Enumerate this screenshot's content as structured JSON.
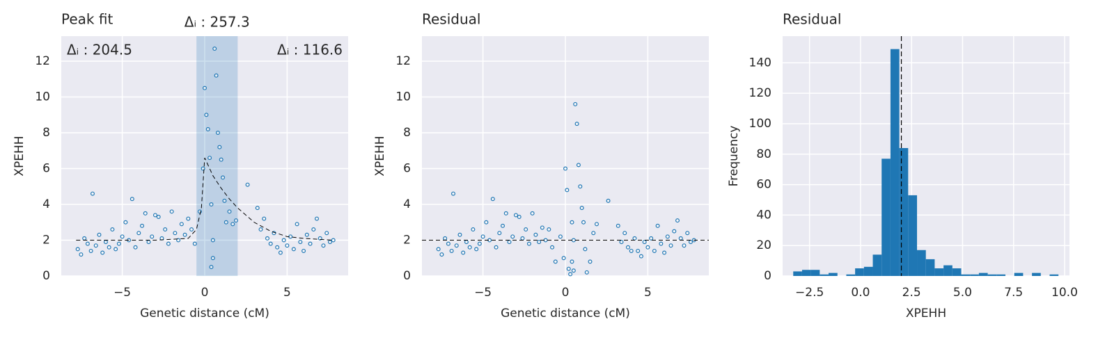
{
  "chart_data": [
    {
      "type": "scatter",
      "title": "Peak fit",
      "xlabel": "Genetic distance (cM)",
      "ylabel": "XPEHH",
      "xlim": [
        -8.7,
        8.7
      ],
      "ylim": [
        0,
        13.4
      ],
      "xticks": [
        {
          "value": -5,
          "label": "−5"
        },
        0,
        5
      ],
      "yticks": [
        0,
        2,
        4,
        6,
        8,
        10,
        12
      ],
      "color": "#1f77b4",
      "points": {
        "x": [
          -7.7,
          -7.5,
          -7.3,
          -7.1,
          -6.9,
          -6.8,
          -6.6,
          -6.4,
          -6.2,
          -6.0,
          -5.8,
          -5.6,
          -5.4,
          -5.2,
          -5.0,
          -4.8,
          -4.6,
          -4.4,
          -4.2,
          -4.0,
          -3.8,
          -3.6,
          -3.4,
          -3.2,
          -3.0,
          -2.8,
          -2.6,
          -2.4,
          -2.2,
          -2.0,
          -1.8,
          -1.6,
          -1.4,
          -1.2,
          -1.0,
          -0.8,
          -0.6,
          -0.3,
          -0.1,
          0.0,
          0.1,
          0.2,
          0.3,
          0.4,
          0.5,
          0.6,
          0.7,
          0.8,
          0.9,
          1.0,
          1.1,
          1.2,
          1.3,
          1.5,
          1.7,
          1.9,
          0.4,
          0.5,
          2.6,
          3.2,
          3.4,
          3.6,
          3.8,
          4.0,
          4.2,
          4.4,
          4.6,
          4.8,
          5.0,
          5.2,
          5.4,
          5.6,
          5.8,
          6.0,
          6.2,
          6.4,
          6.6,
          6.8,
          7.0,
          7.2,
          7.4,
          7.6,
          7.8
        ],
        "y": [
          1.5,
          1.2,
          2.1,
          1.8,
          1.4,
          4.6,
          1.7,
          2.3,
          1.3,
          1.9,
          1.6,
          2.6,
          1.5,
          1.8,
          2.2,
          3.0,
          2.0,
          4.3,
          1.6,
          2.4,
          2.8,
          3.5,
          1.9,
          2.2,
          3.4,
          3.3,
          2.1,
          2.6,
          1.8,
          3.6,
          2.4,
          2.0,
          2.9,
          2.3,
          3.2,
          2.6,
          1.8,
          3.6,
          6.0,
          10.5,
          9.0,
          8.2,
          6.6,
          4.0,
          2.0,
          12.7,
          11.2,
          8.0,
          7.2,
          6.5,
          5.5,
          4.2,
          3.0,
          3.6,
          2.9,
          3.1,
          0.5,
          1.0,
          5.1,
          3.8,
          2.6,
          3.2,
          2.1,
          1.8,
          2.4,
          1.6,
          1.3,
          2.0,
          1.7,
          2.2,
          1.5,
          2.9,
          1.9,
          1.4,
          2.3,
          1.8,
          2.6,
          3.2,
          2.1,
          1.7,
          2.4,
          1.9,
          2.0
        ]
      },
      "fit": {
        "x": [
          -7.8,
          -3,
          -1,
          -0.5,
          -0.2,
          0,
          0.5,
          1,
          1.5,
          2,
          3,
          4,
          5,
          6,
          7.8
        ],
        "y": [
          2,
          2,
          2.1,
          2.6,
          3.8,
          6.6,
          5.6,
          4.9,
          4.3,
          3.8,
          3.0,
          2.5,
          2.2,
          2.1,
          2.0
        ]
      },
      "span": [
        -0.5,
        2.0
      ],
      "annotations": [
        "Δᵢ : 257.3",
        "Δᵢ : 204.5",
        "Δᵢ : 116.6"
      ]
    },
    {
      "type": "scatter",
      "title": "Residual",
      "xlabel": "Genetic distance (cM)",
      "ylabel": "XPEHH",
      "xlim": [
        -8.7,
        8.7
      ],
      "ylim": [
        0,
        13.4
      ],
      "xticks": [
        {
          "value": -5,
          "label": "−5"
        },
        0,
        5
      ],
      "yticks": [
        0,
        2,
        4,
        6,
        8,
        10,
        12
      ],
      "color": "#1f77b4",
      "points": {
        "x": [
          -7.7,
          -7.5,
          -7.3,
          -7.1,
          -6.9,
          -6.8,
          -6.6,
          -6.4,
          -6.2,
          -6.0,
          -5.8,
          -5.6,
          -5.4,
          -5.2,
          -5.0,
          -4.8,
          -4.6,
          -4.4,
          -4.2,
          -4.0,
          -3.8,
          -3.6,
          -3.4,
          -3.2,
          -3.0,
          -2.8,
          -2.6,
          -2.4,
          -2.2,
          -2.0,
          -1.8,
          -1.6,
          -1.4,
          -1.2,
          -1.0,
          -0.8,
          -0.6,
          -0.3,
          -0.1,
          0.0,
          0.1,
          0.2,
          0.3,
          0.4,
          0.5,
          0.6,
          0.7,
          0.8,
          0.9,
          1.0,
          1.1,
          1.2,
          1.3,
          1.5,
          1.7,
          1.9,
          0.4,
          0.5,
          2.6,
          3.2,
          3.4,
          3.6,
          3.8,
          4.0,
          4.2,
          4.4,
          4.6,
          4.8,
          5.0,
          5.2,
          5.4,
          5.6,
          5.8,
          6.0,
          6.2,
          6.4,
          6.6,
          6.8,
          7.0,
          7.2,
          7.4,
          7.6,
          7.8
        ],
        "y": [
          1.5,
          1.2,
          2.1,
          1.8,
          1.4,
          4.6,
          1.7,
          2.3,
          1.3,
          1.9,
          1.6,
          2.6,
          1.5,
          1.8,
          2.2,
          3.0,
          2.0,
          4.3,
          1.6,
          2.4,
          2.8,
          3.5,
          1.9,
          2.2,
          3.4,
          3.3,
          2.1,
          2.6,
          1.8,
          3.5,
          2.3,
          1.9,
          2.7,
          2.0,
          2.6,
          1.6,
          0.8,
          2.2,
          1.0,
          6.0,
          4.8,
          0.4,
          0.1,
          3.0,
          2.0,
          9.6,
          8.5,
          6.2,
          5.0,
          3.8,
          3.0,
          1.5,
          0.2,
          0.8,
          2.4,
          2.9,
          0.8,
          0.3,
          4.2,
          2.8,
          1.9,
          2.4,
          1.6,
          1.4,
          2.1,
          1.4,
          1.1,
          1.9,
          1.6,
          2.1,
          1.4,
          2.8,
          1.8,
          1.3,
          2.2,
          1.7,
          2.5,
          3.1,
          2.1,
          1.7,
          2.4,
          1.9,
          2.0
        ]
      },
      "hline": 2
    },
    {
      "type": "hist",
      "title": "Residual",
      "xlabel": "XPEHH",
      "ylabel": "Frequency",
      "xlim": [
        -3.82,
        10.24
      ],
      "ylim": [
        0,
        157.5
      ],
      "xticks": [
        {
          "value": -2.5,
          "label": "−2.5"
        },
        {
          "value": 0,
          "label": "0.0"
        },
        {
          "value": 2.5,
          "label": "2.5"
        },
        {
          "value": 5,
          "label": "5.0"
        },
        {
          "value": 7.5,
          "label": "7.5"
        },
        {
          "value": 10,
          "label": "10.0"
        }
      ],
      "yticks": [
        0,
        20,
        40,
        60,
        80,
        100,
        120,
        140
      ],
      "color": "#1f77b4",
      "bins": [
        -3.3,
        -2.867,
        -2.433,
        -2.0,
        -1.567,
        -1.133,
        -0.7,
        -0.267,
        0.167,
        0.6,
        1.033,
        1.467,
        1.9,
        2.333,
        2.767,
        3.2,
        3.633,
        4.067,
        4.5,
        4.933,
        5.367,
        5.8,
        6.233,
        6.667,
        7.1,
        7.533,
        7.967,
        8.4,
        8.833,
        9.267,
        9.7
      ],
      "counts": [
        3,
        4,
        4,
        1,
        2,
        0,
        1,
        5,
        6,
        14,
        77,
        149,
        84,
        53,
        17,
        11,
        5,
        7,
        5,
        1,
        1,
        2,
        1,
        1,
        0,
        2,
        0,
        2,
        0,
        1
      ],
      "vline": 2.0
    }
  ]
}
